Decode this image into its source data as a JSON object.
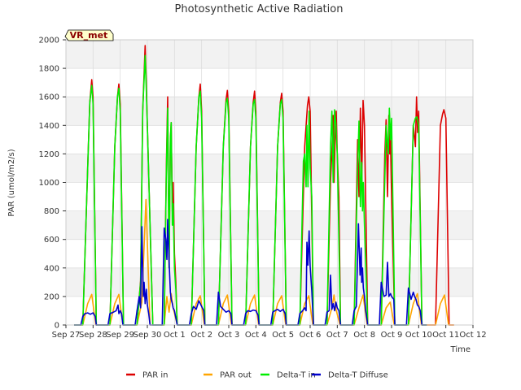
{
  "chart_data": {
    "type": "line",
    "title": "Photosynthetic Active Radiation",
    "xlabel": "Time",
    "ylabel": "PAR (umol/m2/s)",
    "ylim": [
      0,
      2000
    ],
    "yticks": [
      0,
      200,
      400,
      600,
      800,
      1000,
      1200,
      1400,
      1600,
      1800,
      2000
    ],
    "xlim": [
      0,
      15
    ],
    "xticks": [
      "Sep 27",
      "Sep 28",
      "Sep 29",
      "Sep 30",
      "Oct 1",
      "Oct 2",
      "Oct 3",
      "Oct 4",
      "Oct 5",
      "Oct 6",
      "Oct 7",
      "Oct 8",
      "Oct 9",
      "Oct 10",
      "Oct 11",
      "Oct 12"
    ],
    "site_label": "VR_met",
    "legend_position": "bottom-center",
    "series": [
      {
        "name": "PAR in",
        "color": "#dd0000",
        "x": [
          0.3,
          0.62,
          0.8,
          0.88,
          0.95,
          1.0,
          1.12,
          1.3,
          1.62,
          1.8,
          1.9,
          1.95,
          2.0,
          2.12,
          2.3,
          2.62,
          2.75,
          2.83,
          2.92,
          2.96,
          3.0,
          3.2,
          3.3,
          3.62,
          3.7,
          3.75,
          3.8,
          3.85,
          3.88,
          3.92,
          3.95,
          4.0,
          4.05,
          4.1,
          4.3,
          4.62,
          4.8,
          4.9,
          4.95,
          5.0,
          5.12,
          5.3,
          5.62,
          5.8,
          5.9,
          5.95,
          6.0,
          6.12,
          6.3,
          6.62,
          6.8,
          6.9,
          6.95,
          7.0,
          7.12,
          7.3,
          7.62,
          7.8,
          7.9,
          7.95,
          8.0,
          8.12,
          8.3,
          8.62,
          8.8,
          8.9,
          8.95,
          9.0,
          9.12,
          9.3,
          9.62,
          9.75,
          9.8,
          9.85,
          9.88,
          9.92,
          9.96,
          10.0,
          10.06,
          10.12,
          10.3,
          10.62,
          10.75,
          10.8,
          10.85,
          10.9,
          10.95,
          11.0,
          11.12,
          11.3,
          11.62,
          11.75,
          11.8,
          11.85,
          11.9,
          11.93,
          11.96,
          12.0,
          12.12,
          12.3,
          12.62,
          12.8,
          12.88,
          12.92,
          12.96,
          13.0,
          13.12,
          13.3,
          13.62,
          13.8,
          13.88,
          13.93,
          14.0,
          14.12,
          14.3
        ],
        "y": [
          0,
          0,
          1100,
          1560,
          1720,
          1600,
          0,
          0,
          0,
          1250,
          1600,
          1690,
          1550,
          0,
          0,
          0,
          310,
          1500,
          1960,
          1700,
          1400,
          0,
          0,
          0,
          1100,
          1600,
          400,
          1300,
          1420,
          800,
          1000,
          500,
          300,
          0,
          0,
          0,
          1250,
          1600,
          1690,
          1500,
          0,
          0,
          0,
          1250,
          1580,
          1645,
          1500,
          0,
          0,
          0,
          1250,
          1560,
          1640,
          1500,
          0,
          0,
          0,
          1250,
          1560,
          1625,
          1500,
          0,
          0,
          0,
          1250,
          1540,
          1600,
          1500,
          0,
          0,
          0,
          1000,
          1220,
          1470,
          1000,
          1300,
          1500,
          1200,
          900,
          0,
          0,
          0,
          1300,
          900,
          1520,
          1000,
          1575,
          1400,
          0,
          0,
          0,
          1200,
          1440,
          900,
          1470,
          1200,
          1300,
          900,
          0,
          0,
          0,
          1400,
          1250,
          1600,
          1350,
          1500,
          0,
          0,
          0,
          1400,
          1480,
          1510,
          1450,
          0,
          0
        ]
      },
      {
        "name": "PAR out",
        "color": "#ffa500",
        "x": [
          0.3,
          0.62,
          0.8,
          0.95,
          1.1,
          1.3,
          1.62,
          1.8,
          1.95,
          2.1,
          2.3,
          2.62,
          2.8,
          2.95,
          3.1,
          3.3,
          3.62,
          3.72,
          3.8,
          3.88,
          3.95,
          4.1,
          4.3,
          4.62,
          4.8,
          4.95,
          5.1,
          5.3,
          5.62,
          5.8,
          5.95,
          6.1,
          6.3,
          6.62,
          6.8,
          6.95,
          7.1,
          7.3,
          7.62,
          7.8,
          7.95,
          8.1,
          8.3,
          8.62,
          8.8,
          8.95,
          9.1,
          9.3,
          9.62,
          9.8,
          9.88,
          9.95,
          10.1,
          10.3,
          10.62,
          10.8,
          10.95,
          11.1,
          11.3,
          11.62,
          11.8,
          11.95,
          12.1,
          12.3,
          12.62,
          12.8,
          12.95,
          13.1,
          13.3,
          13.62,
          13.8,
          13.95,
          14.1,
          14.3
        ],
        "y": [
          0,
          0,
          150,
          215,
          0,
          0,
          0,
          150,
          215,
          0,
          0,
          0,
          160,
          880,
          0,
          0,
          0,
          200,
          90,
          220,
          120,
          0,
          0,
          0,
          150,
          205,
          0,
          0,
          0,
          150,
          210,
          0,
          0,
          0,
          150,
          210,
          0,
          0,
          0,
          150,
          205,
          0,
          0,
          0,
          150,
          205,
          0,
          0,
          0,
          120,
          210,
          110,
          0,
          0,
          0,
          120,
          210,
          0,
          0,
          0,
          120,
          160,
          0,
          0,
          0,
          150,
          220,
          0,
          0,
          0,
          150,
          210,
          0,
          0
        ]
      },
      {
        "name": "Delta-T in",
        "color": "#00ee00",
        "x": [
          0.3,
          0.62,
          0.8,
          0.88,
          0.95,
          1.0,
          1.12,
          1.3,
          1.62,
          1.8,
          1.9,
          1.95,
          2.0,
          2.12,
          2.3,
          2.62,
          2.75,
          2.83,
          2.92,
          2.96,
          3.0,
          3.2,
          3.3,
          3.62,
          3.7,
          3.75,
          3.8,
          3.85,
          3.88,
          3.92,
          3.95,
          4.0,
          4.05,
          4.1,
          4.3,
          4.62,
          4.8,
          4.9,
          4.95,
          5.0,
          5.12,
          5.3,
          5.62,
          5.8,
          5.9,
          5.95,
          6.0,
          6.12,
          6.3,
          6.62,
          6.8,
          6.9,
          6.95,
          7.0,
          7.12,
          7.3,
          7.62,
          7.8,
          7.9,
          7.95,
          8.0,
          8.12,
          8.3,
          8.62,
          8.75,
          8.8,
          8.85,
          8.88,
          8.92,
          8.96,
          9.0,
          9.06,
          9.12,
          9.3,
          9.62,
          9.75,
          9.8,
          9.85,
          9.9,
          9.95,
          10.0,
          10.12,
          10.3,
          10.62,
          10.75,
          10.8,
          10.85,
          10.9,
          10.93,
          10.96,
          11.0,
          11.12,
          11.3,
          11.62,
          11.8,
          11.88,
          11.92,
          11.96,
          12.0,
          12.12,
          12.3,
          12.62,
          12.8,
          12.88,
          12.93,
          13.0,
          13.12,
          13.3
        ],
        "y": [
          0,
          0,
          1100,
          1560,
          1680,
          1550,
          0,
          0,
          0,
          1250,
          1600,
          1660,
          1500,
          0,
          0,
          0,
          300,
          1500,
          1890,
          1650,
          1400,
          0,
          0,
          0,
          1050,
          1520,
          400,
          1300,
          1420,
          700,
          850,
          400,
          250,
          0,
          0,
          0,
          1250,
          1600,
          1640,
          1450,
          0,
          0,
          0,
          1250,
          1560,
          1590,
          1450,
          0,
          0,
          0,
          1250,
          1550,
          1580,
          1450,
          0,
          0,
          0,
          1250,
          1550,
          1580,
          1450,
          0,
          0,
          0,
          1150,
          1200,
          970,
          1400,
          970,
          1500,
          1100,
          900,
          0,
          0,
          0,
          1250,
          1500,
          1000,
          1510,
          1400,
          1200,
          0,
          0,
          0,
          1100,
          1430,
          830,
          1140,
          800,
          1000,
          700,
          0,
          0,
          0,
          1400,
          1200,
          1520,
          1300,
          1450,
          0,
          0,
          0,
          1400,
          1450,
          1460,
          1400,
          0,
          0
        ]
      },
      {
        "name": "Delta-T Diffuse",
        "color": "#0000cc",
        "x": [
          0.3,
          0.55,
          0.62,
          0.7,
          0.8,
          0.9,
          1.0,
          1.08,
          1.12,
          1.3,
          1.55,
          1.62,
          1.75,
          1.85,
          1.92,
          1.95,
          2.0,
          2.05,
          2.1,
          2.3,
          2.55,
          2.62,
          2.7,
          2.75,
          2.8,
          2.85,
          2.88,
          2.92,
          2.96,
          3.0,
          3.05,
          3.1,
          3.3,
          3.55,
          3.62,
          3.68,
          3.72,
          3.75,
          3.8,
          3.85,
          3.88,
          3.92,
          3.95,
          4.0,
          4.1,
          4.3,
          4.55,
          4.62,
          4.7,
          4.8,
          4.9,
          5.0,
          5.08,
          5.12,
          5.3,
          5.55,
          5.62,
          5.7,
          5.8,
          5.9,
          6.0,
          6.08,
          6.12,
          6.3,
          6.55,
          6.62,
          6.7,
          6.8,
          6.9,
          7.0,
          7.08,
          7.12,
          7.3,
          7.55,
          7.62,
          7.7,
          7.8,
          7.9,
          8.0,
          8.08,
          8.12,
          8.3,
          8.55,
          8.62,
          8.72,
          8.8,
          8.85,
          8.88,
          8.92,
          8.96,
          9.0,
          9.06,
          9.12,
          9.3,
          9.55,
          9.62,
          9.7,
          9.75,
          9.8,
          9.85,
          9.9,
          9.95,
          10.0,
          10.06,
          10.12,
          10.3,
          10.55,
          10.62,
          10.7,
          10.78,
          10.84,
          10.88,
          10.9,
          10.93,
          10.96,
          11.0,
          11.05,
          11.12,
          11.3,
          11.55,
          11.62,
          11.72,
          11.8,
          11.85,
          11.9,
          11.96,
          12.0,
          12.08,
          12.12,
          12.3,
          12.55,
          12.62,
          12.72,
          12.8,
          12.85,
          12.9,
          12.95,
          13.0,
          13.06,
          13.12,
          13.3
        ],
        "y": [
          0,
          0,
          60,
          80,
          85,
          75,
          85,
          60,
          0,
          0,
          0,
          80,
          90,
          100,
          140,
          80,
          100,
          80,
          0,
          0,
          0,
          100,
          200,
          120,
          690,
          200,
          300,
          150,
          250,
          140,
          80,
          0,
          0,
          0,
          680,
          600,
          460,
          740,
          450,
          230,
          180,
          150,
          120,
          100,
          0,
          0,
          0,
          80,
          130,
          110,
          170,
          130,
          100,
          0,
          0,
          0,
          230,
          130,
          110,
          90,
          100,
          80,
          0,
          0,
          0,
          80,
          100,
          95,
          105,
          100,
          70,
          0,
          0,
          0,
          90,
          100,
          110,
          95,
          110,
          80,
          0,
          0,
          0,
          80,
          100,
          120,
          100,
          580,
          420,
          660,
          410,
          240,
          0,
          0,
          0,
          90,
          100,
          350,
          110,
          150,
          100,
          160,
          120,
          100,
          0,
          0,
          0,
          100,
          130,
          710,
          350,
          540,
          300,
          400,
          260,
          200,
          100,
          0,
          0,
          0,
          300,
          200,
          210,
          440,
          200,
          220,
          200,
          180,
          0,
          0,
          0,
          260,
          180,
          230,
          200,
          180,
          140,
          130,
          100,
          0,
          0
        ]
      }
    ]
  }
}
